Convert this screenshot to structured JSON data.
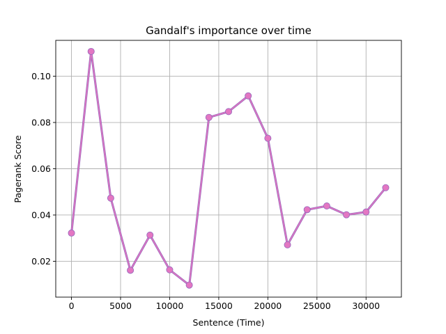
{
  "chart_data": {
    "type": "line",
    "title": "Gandalf's importance over time",
    "xlabel": "Sentence (Time)",
    "ylabel": "Pagerank Score",
    "xlim": [
      -1600,
      33600
    ],
    "ylim": [
      0.0045,
      0.1155
    ],
    "grid": true,
    "xticks": [
      0,
      5000,
      10000,
      15000,
      20000,
      25000,
      30000
    ],
    "xtick_labels": [
      "0",
      "5000",
      "10000",
      "15000",
      "20000",
      "25000",
      "30000"
    ],
    "yticks": [
      0.02,
      0.04,
      0.06,
      0.08,
      0.1
    ],
    "ytick_labels": [
      "0.02",
      "0.04",
      "0.06",
      "0.08",
      "0.10"
    ],
    "series": [
      {
        "color": "#e377c2",
        "edge_color": "#9467bd",
        "marker": "circle",
        "x": [
          0,
          2000,
          4000,
          6000,
          8000,
          10000,
          12000,
          14000,
          16000,
          18000,
          20000,
          22000,
          24000,
          26000,
          28000,
          30000,
          32000
        ],
        "y": [
          0.0322,
          0.1107,
          0.0473,
          0.0161,
          0.0313,
          0.0163,
          0.0097,
          0.0822,
          0.0847,
          0.0915,
          0.0732,
          0.0271,
          0.0423,
          0.0439,
          0.0401,
          0.0413,
          0.0518
        ]
      }
    ]
  }
}
